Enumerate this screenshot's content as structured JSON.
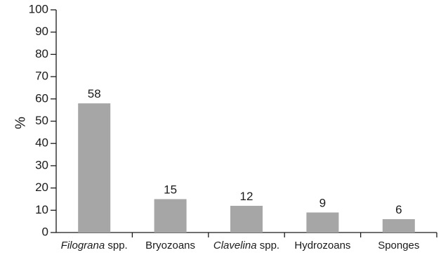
{
  "chart_data": {
    "type": "bar",
    "ylabel": "%",
    "xlabel": "",
    "ylim": [
      0,
      100
    ],
    "yticks": [
      0,
      10,
      20,
      30,
      40,
      50,
      60,
      70,
      80,
      90,
      100
    ],
    "grid": false,
    "bar_color": "#a6a6a6",
    "categories": [
      {
        "name": "Filograna",
        "suffix": " spp.",
        "italic_name": true
      },
      {
        "name": "Bryozoans",
        "suffix": "",
        "italic_name": false
      },
      {
        "name": "Clavelina",
        "suffix": " spp.",
        "italic_name": true
      },
      {
        "name": "Hydrozoans",
        "suffix": "",
        "italic_name": false
      },
      {
        "name": "Sponges",
        "suffix": "",
        "italic_name": false
      }
    ],
    "values": [
      58,
      15,
      12,
      9,
      6
    ],
    "data_labels": [
      "58",
      "15",
      "12",
      "9",
      "6"
    ]
  }
}
